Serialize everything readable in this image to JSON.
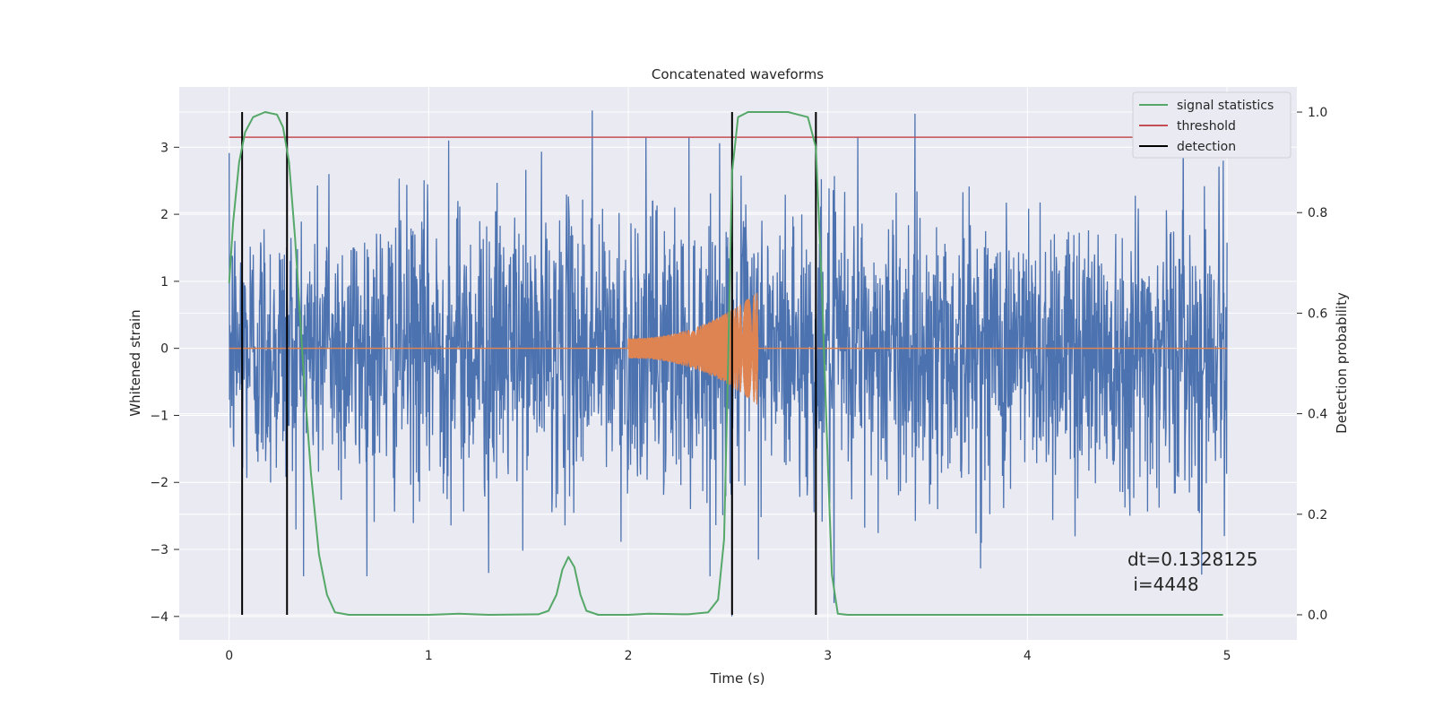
{
  "chart_data": {
    "type": "line",
    "title": "Concatenated waveforms",
    "xlabel": "Time (s)",
    "ylabel": "Whitened strain",
    "y2label": "Detection probability",
    "xlim": [
      -0.25,
      5.35
    ],
    "ylim": [
      -4.35,
      3.9
    ],
    "y2lim": [
      -0.05,
      1.05
    ],
    "x_ticks": [
      0,
      1,
      2,
      3,
      4,
      5
    ],
    "y_ticks": [
      -4,
      -3,
      -2,
      -1,
      0,
      1,
      2,
      3
    ],
    "y2_ticks": [
      0.0,
      0.2,
      0.4,
      0.6,
      0.8,
      1.0
    ],
    "y2_tick_labels": [
      "0.0",
      "0.2",
      "0.4",
      "0.6",
      "0.8",
      "1.0"
    ],
    "x_tick_labels": [
      "0",
      "1",
      "2",
      "3",
      "4",
      "5"
    ],
    "y_tick_labels": [
      "−4",
      "−3",
      "−2",
      "−1",
      "0",
      "1",
      "2",
      "3"
    ],
    "grid": true,
    "legend_position": "top-right",
    "background_color": "#eaeaf2",
    "series": [
      {
        "kind": "noise",
        "color": "#4c72b0",
        "x_range": [
          0,
          5
        ],
        "axis": "left",
        "approx_envelope": [
          -3.4,
          3.5
        ],
        "notable_peaks": [
          {
            "x": 1.82,
            "y": 3.55
          },
          {
            "x": 0.5,
            "y": 2.6
          },
          {
            "x": 1.1,
            "y": 3.1
          },
          {
            "x": 3.15,
            "y": 3.15
          },
          {
            "x": 4.98,
            "y": 2.8
          },
          {
            "x": 1.3,
            "y": -3.35
          },
          {
            "x": 2.52,
            "y": -4.0
          },
          {
            "x": 3.03,
            "y": -3.8
          }
        ]
      },
      {
        "kind": "chirp",
        "color": "#dd8452",
        "axis": "left",
        "start": 2.0,
        "end": 2.65,
        "start_amplitude": 0.15,
        "end_amplitude": 0.85
      },
      {
        "name": "signal statistics",
        "color": "#55a868",
        "axis": "right",
        "points": [
          [
            0.0,
            0.66
          ],
          [
            0.02,
            0.78
          ],
          [
            0.05,
            0.9
          ],
          [
            0.08,
            0.96
          ],
          [
            0.12,
            0.99
          ],
          [
            0.18,
            1.0
          ],
          [
            0.24,
            0.995
          ],
          [
            0.27,
            0.97
          ],
          [
            0.3,
            0.9
          ],
          [
            0.33,
            0.75
          ],
          [
            0.37,
            0.5
          ],
          [
            0.41,
            0.28
          ],
          [
            0.45,
            0.12
          ],
          [
            0.49,
            0.04
          ],
          [
            0.53,
            0.005
          ],
          [
            0.6,
            0.0
          ],
          [
            1.0,
            0.0
          ],
          [
            1.15,
            0.002
          ],
          [
            1.3,
            0.0
          ],
          [
            1.55,
            0.001
          ],
          [
            1.6,
            0.008
          ],
          [
            1.64,
            0.04
          ],
          [
            1.67,
            0.09
          ],
          [
            1.7,
            0.115
          ],
          [
            1.73,
            0.095
          ],
          [
            1.76,
            0.04
          ],
          [
            1.79,
            0.008
          ],
          [
            1.85,
            0.0
          ],
          [
            2.0,
            0.0
          ],
          [
            2.1,
            0.002
          ],
          [
            2.3,
            0.001
          ],
          [
            2.4,
            0.005
          ],
          [
            2.45,
            0.03
          ],
          [
            2.48,
            0.15
          ],
          [
            2.5,
            0.5
          ],
          [
            2.52,
            0.88
          ],
          [
            2.55,
            0.99
          ],
          [
            2.6,
            1.0
          ],
          [
            2.8,
            1.0
          ],
          [
            2.9,
            0.99
          ],
          [
            2.94,
            0.93
          ],
          [
            2.97,
            0.65
          ],
          [
            3.0,
            0.3
          ],
          [
            3.02,
            0.08
          ],
          [
            3.05,
            0.002
          ],
          [
            3.1,
            0.0
          ],
          [
            4.98,
            0.0
          ]
        ]
      },
      {
        "name": "threshold",
        "color": "#c44e52",
        "axis": "right",
        "value": 0.95,
        "x_range": [
          0,
          5.1
        ]
      },
      {
        "name": "detection",
        "color": "#000000",
        "axis": "right",
        "x_positions": [
          0.065,
          0.29,
          2.52,
          2.94
        ],
        "y_range": [
          0.0,
          1.0
        ]
      }
    ],
    "annotation": {
      "line1": "dt=0.1328125",
      "line2": " i=4448"
    }
  }
}
